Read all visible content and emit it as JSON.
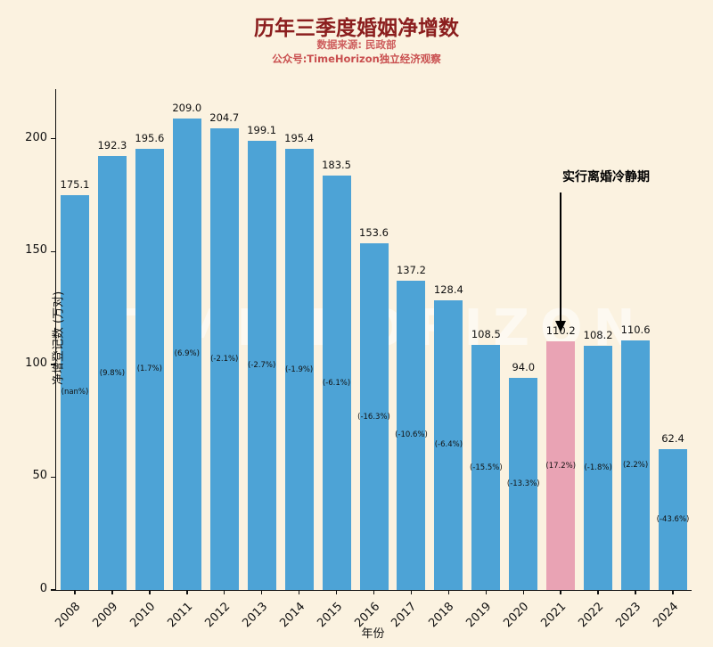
{
  "header": {
    "title": "历年三季度婚姻净增数",
    "subtitle1": "数据来源: 民政部",
    "subtitle2": "公众号:TimeHorizon独立经济观察"
  },
  "chart_data": {
    "type": "bar",
    "title": "历年三季度婚姻净增数",
    "xlabel": "年份",
    "ylabel": "净增登记数 (万对)",
    "ylim": [
      0,
      222
    ],
    "yticks": [
      0,
      50,
      100,
      150,
      200
    ],
    "grid": false,
    "legend": "none",
    "categories": [
      "2008",
      "2009",
      "2010",
      "2011",
      "2012",
      "2013",
      "2014",
      "2015",
      "2016",
      "2017",
      "2018",
      "2019",
      "2020",
      "2021",
      "2022",
      "2023",
      "2024"
    ],
    "values": [
      175.1,
      192.3,
      195.6,
      209.0,
      204.7,
      199.1,
      195.4,
      183.5,
      153.6,
      137.2,
      128.4,
      108.5,
      94.0,
      110.2,
      108.2,
      110.6,
      62.4
    ],
    "pct_labels": [
      "(nan%)",
      "(9.8%)",
      "(1.7%)",
      "(6.9%)",
      "(-2.1%)",
      "(-2.7%)",
      "(-1.9%)",
      "(-6.1%)",
      "(-16.3%)",
      "(-10.6%)",
      "(-6.4%)",
      "(-15.5%)",
      "(-13.3%)",
      "(17.2%)",
      "(-1.8%)",
      "(2.2%)",
      "(-43.6%)"
    ],
    "highlight_index": 13,
    "bar_color": "#4da3d6",
    "highlight_color": "#e9a3b4",
    "background_color": "#fbf2e0",
    "annotation": {
      "text": "实行离婚冷静期",
      "target_year": "2021"
    },
    "watermark": "TIME HORIZON"
  }
}
